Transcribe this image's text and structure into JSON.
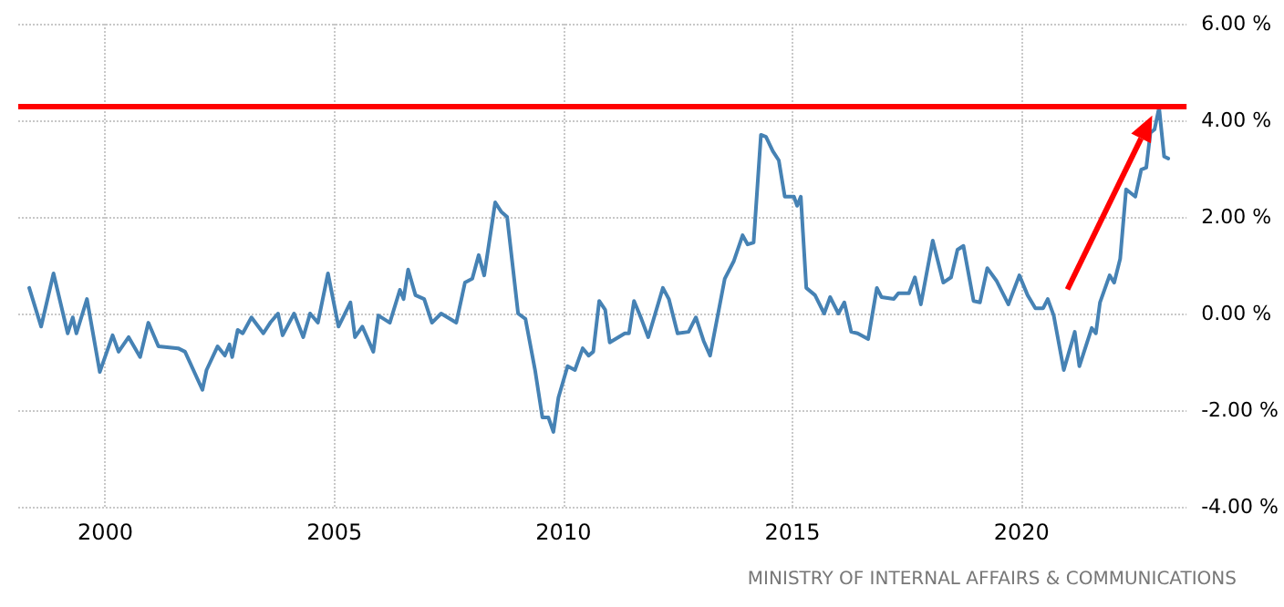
{
  "chart_data": {
    "type": "line",
    "x": [
      1998.34,
      1998.6,
      1998.87,
      1999.18,
      1999.29,
      1999.37,
      1999.6,
      1999.88,
      2000.16,
      2000.29,
      2000.51,
      2000.76,
      2000.94,
      2001.16,
      2001.59,
      2001.74,
      2002.12,
      2002.21,
      2002.45,
      2002.61,
      2002.71,
      2002.77,
      2002.89,
      2003.0,
      2003.19,
      2003.45,
      2003.6,
      2003.77,
      2003.87,
      2004.12,
      2004.32,
      2004.47,
      2004.64,
      2004.86,
      2005.09,
      2005.35,
      2005.45,
      2005.61,
      2005.85,
      2005.96,
      2006.21,
      2006.43,
      2006.51,
      2006.61,
      2006.77,
      2006.96,
      2007.13,
      2007.33,
      2007.66,
      2007.85,
      2008.01,
      2008.15,
      2008.27,
      2008.51,
      2008.64,
      2008.77,
      2009.01,
      2009.17,
      2009.38,
      2009.54,
      2009.67,
      2009.78,
      2009.89,
      2010.09,
      2010.25,
      2010.42,
      2010.55,
      2010.65,
      2010.78,
      2010.91,
      2011.01,
      2011.34,
      2011.43,
      2011.54,
      2011.7,
      2011.85,
      2012.17,
      2012.3,
      2012.49,
      2012.73,
      2012.89,
      2013.06,
      2013.2,
      2013.52,
      2013.72,
      2013.91,
      2014.02,
      2014.15,
      2014.31,
      2014.42,
      2014.57,
      2014.7,
      2014.83,
      2015.03,
      2015.1,
      2015.18,
      2015.3,
      2015.49,
      2015.69,
      2015.82,
      2016.0,
      2016.13,
      2016.28,
      2016.42,
      2016.65,
      2016.84,
      2016.94,
      2017.21,
      2017.31,
      2017.54,
      2017.67,
      2017.8,
      2018.06,
      2018.29,
      2018.46,
      2018.6,
      2018.73,
      2018.95,
      2019.09,
      2019.25,
      2019.45,
      2019.71,
      2019.95,
      2020.13,
      2020.3,
      2020.47,
      2020.57,
      2020.7,
      2020.92,
      2021.16,
      2021.26,
      2021.53,
      2021.62,
      2021.71,
      2021.92,
      2022.02,
      2022.15,
      2022.28,
      2022.48,
      2022.61,
      2022.72,
      2022.81,
      2022.9,
      2023.0,
      2023.11,
      2023.2
    ],
    "series": [
      {
        "color": "#4682b4",
        "values": [
          0.53,
          -0.27,
          0.83,
          -0.41,
          -0.08,
          -0.41,
          0.3,
          -1.21,
          -0.45,
          -0.79,
          -0.49,
          -0.9,
          -0.19,
          -0.68,
          -0.72,
          -0.79,
          -1.58,
          -1.17,
          -0.68,
          -0.87,
          -0.64,
          -0.9,
          -0.34,
          -0.41,
          -0.08,
          -0.41,
          -0.19,
          0,
          -0.45,
          0,
          -0.49,
          0,
          -0.19,
          0.83,
          -0.27,
          0.23,
          -0.49,
          -0.27,
          -0.79,
          -0.04,
          -0.19,
          0.49,
          0.3,
          0.91,
          0.38,
          0.3,
          -0.19,
          0,
          -0.19,
          0.64,
          0.72,
          1.21,
          0.79,
          2.3,
          2.11,
          2.0,
          0,
          -0.11,
          -1.17,
          -2.15,
          -2.15,
          -2.45,
          -1.74,
          -1.09,
          -1.17,
          -0.72,
          -0.87,
          -0.79,
          0.26,
          0.08,
          -0.6,
          -0.41,
          -0.41,
          0.26,
          -0.11,
          -0.49,
          0.53,
          0.3,
          -0.41,
          -0.38,
          -0.08,
          -0.57,
          -0.87,
          0.72,
          1.09,
          1.62,
          1.43,
          1.47,
          3.7,
          3.66,
          3.36,
          3.17,
          2.42,
          2.42,
          2.23,
          2.42,
          0.53,
          0.38,
          0,
          0.34,
          0,
          0.23,
          -0.38,
          -0.41,
          -0.53,
          0.53,
          0.34,
          0.3,
          0.42,
          0.42,
          0.75,
          0.19,
          1.51,
          0.64,
          0.75,
          1.32,
          1.4,
          0.26,
          0.23,
          0.94,
          0.68,
          0.19,
          0.79,
          0.38,
          0.11,
          0.11,
          0.3,
          -0.04,
          -1.17,
          -0.38,
          -1.09,
          -0.3,
          -0.41,
          0.23,
          0.79,
          0.64,
          1.13,
          2.57,
          2.42,
          2.98,
          3.02,
          3.74,
          3.81,
          4.26,
          3.25,
          3.21
        ]
      }
    ],
    "xlim": [
      1998.1,
      2023.6
    ],
    "xticks": [
      2000,
      2005,
      2010,
      2015,
      2020
    ],
    "ylim": [
      -4,
      6
    ],
    "yticks": [
      {
        "value": -4,
        "label": "-4.00 %"
      },
      {
        "value": -2,
        "label": "-2.00 %"
      },
      {
        "value": 0,
        "label": "0.00 %"
      },
      {
        "value": 2,
        "label": "2.00 %"
      },
      {
        "value": 4,
        "label": "4.00 %"
      },
      {
        "value": 6,
        "label": "6.00 %"
      }
    ],
    "ref_lines": [
      {
        "axis": "y",
        "value": 4.3,
        "color": "#ff0000"
      }
    ],
    "annotations": [
      "MINISTRY OF INTERNAL AFFAIRS & COMMUNICATIONS"
    ],
    "grid": true,
    "marker": "none",
    "line_style": "solid"
  }
}
